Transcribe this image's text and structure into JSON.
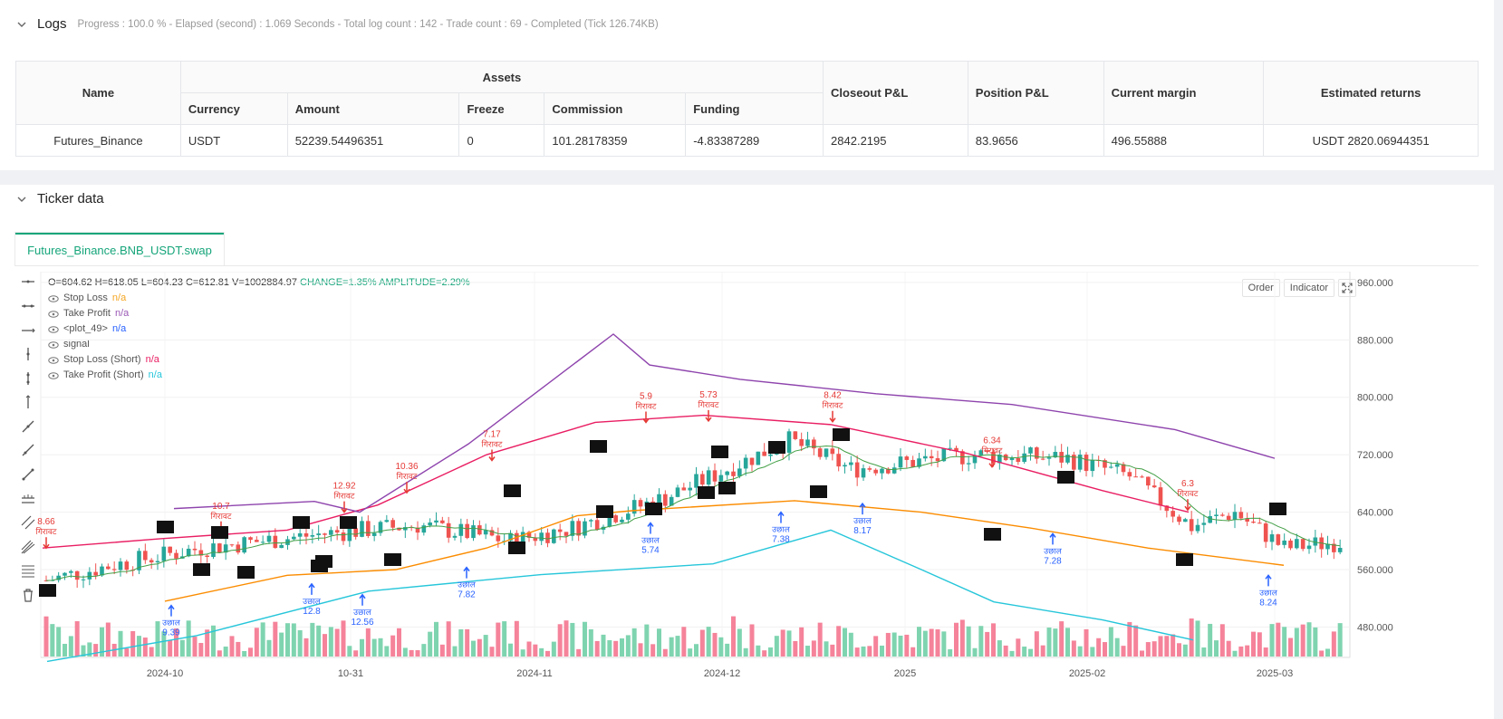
{
  "logs": {
    "title": "Logs",
    "summary": "Progress : 100.0 % - Elapsed (second) : 1.069  Seconds - Total log count : 142 - Trade count : 69 - Completed (Tick 126.74KB)"
  },
  "assets_table": {
    "group_header": "Assets",
    "headers": [
      "Name",
      "Currency",
      "Amount",
      "Freeze",
      "Commission",
      "Funding",
      "Closeout P&L",
      "Position P&L",
      "Current margin",
      "Estimated returns"
    ],
    "row": [
      "Futures_Binance",
      "USDT",
      "52239.54496351",
      "0",
      "101.28178359",
      "-4.83387289",
      "2842.2195",
      "83.9656",
      "496.55888",
      "USDT 2820.06944351"
    ]
  },
  "ticker": {
    "title": "Ticker data",
    "tab": "Futures_Binance.BNB_USDT.swap"
  },
  "chart_legend": {
    "ohlc_prefix": "O=604.62 H=618.05 L=604.23 C=612.81 V=1002884.97",
    "change": "CHANGE=1.35%",
    "amplitude": "AMPLITUDE=2.29%",
    "items": [
      {
        "name": "Stop Loss",
        "value": "n/a",
        "color": "#f5a623"
      },
      {
        "name": "Take Profit",
        "value": "n/a",
        "color": "#9b59b6"
      },
      {
        "name": "<plot_49>",
        "value": "n/a",
        "color": "#2962ff"
      },
      {
        "name": "signal",
        "value": "",
        "color": "#333333"
      },
      {
        "name": "Stop Loss (Short)",
        "value": "n/a",
        "color": "#e91e63"
      },
      {
        "name": "Take Profit (Short)",
        "value": "n/a",
        "color": "#26c6da"
      }
    ]
  },
  "chart_buttons": {
    "order": "Order",
    "indicator": "Indicator"
  },
  "chart_data": {
    "type": "candlestick",
    "y_axis_ticks": [
      "960.000",
      "880.000",
      "800.000",
      "720.000",
      "640.000",
      "560.000",
      "480.000"
    ],
    "x_axis_ticks": [
      "2024-10",
      "10-31",
      "2024-11",
      "2024-12",
      "2025",
      "2025-02",
      "2025-03"
    ],
    "ylim": [
      420,
      975
    ],
    "sell_labels": [
      {
        "value": "8.66",
        "text": "गिरावट",
        "price": 590
      },
      {
        "value": "10.7",
        "text": "गिरावट",
        "price": 612
      },
      {
        "value": "12.92",
        "text": "गिरावट",
        "price": 640
      },
      {
        "value": "10.36",
        "text": "गिरावट",
        "price": 667
      },
      {
        "value": "7.17",
        "text": "गिरावट",
        "price": 712
      },
      {
        "value": "5.9",
        "text": "गिरावट",
        "price": 765
      },
      {
        "value": "5.73",
        "text": "गिरावट",
        "price": 767
      },
      {
        "value": "8.42",
        "text": "गिरावट",
        "price": 766
      },
      {
        "value": "6.34",
        "text": "गिरावट",
        "price": 703
      },
      {
        "value": "6.3",
        "text": "गिरावट",
        "price": 643
      }
    ],
    "buy_labels": [
      {
        "value": "9.39",
        "text": "उछाल",
        "price": 510
      },
      {
        "value": "12.8",
        "text": "उछाल",
        "price": 540
      },
      {
        "value": "12.56",
        "text": "उछाल",
        "price": 525
      },
      {
        "value": "7.82",
        "text": "उछाल",
        "price": 563
      },
      {
        "value": "5.74",
        "text": "उछाल",
        "price": 625
      },
      {
        "value": "7.38",
        "text": "उछाल",
        "price": 640
      },
      {
        "value": "8.17",
        "text": "उछाल",
        "price": 652
      },
      {
        "value": "7.28",
        "text": "उछाल",
        "price": 610
      },
      {
        "value": "8.24",
        "text": "उछाल",
        "price": 552
      }
    ]
  }
}
